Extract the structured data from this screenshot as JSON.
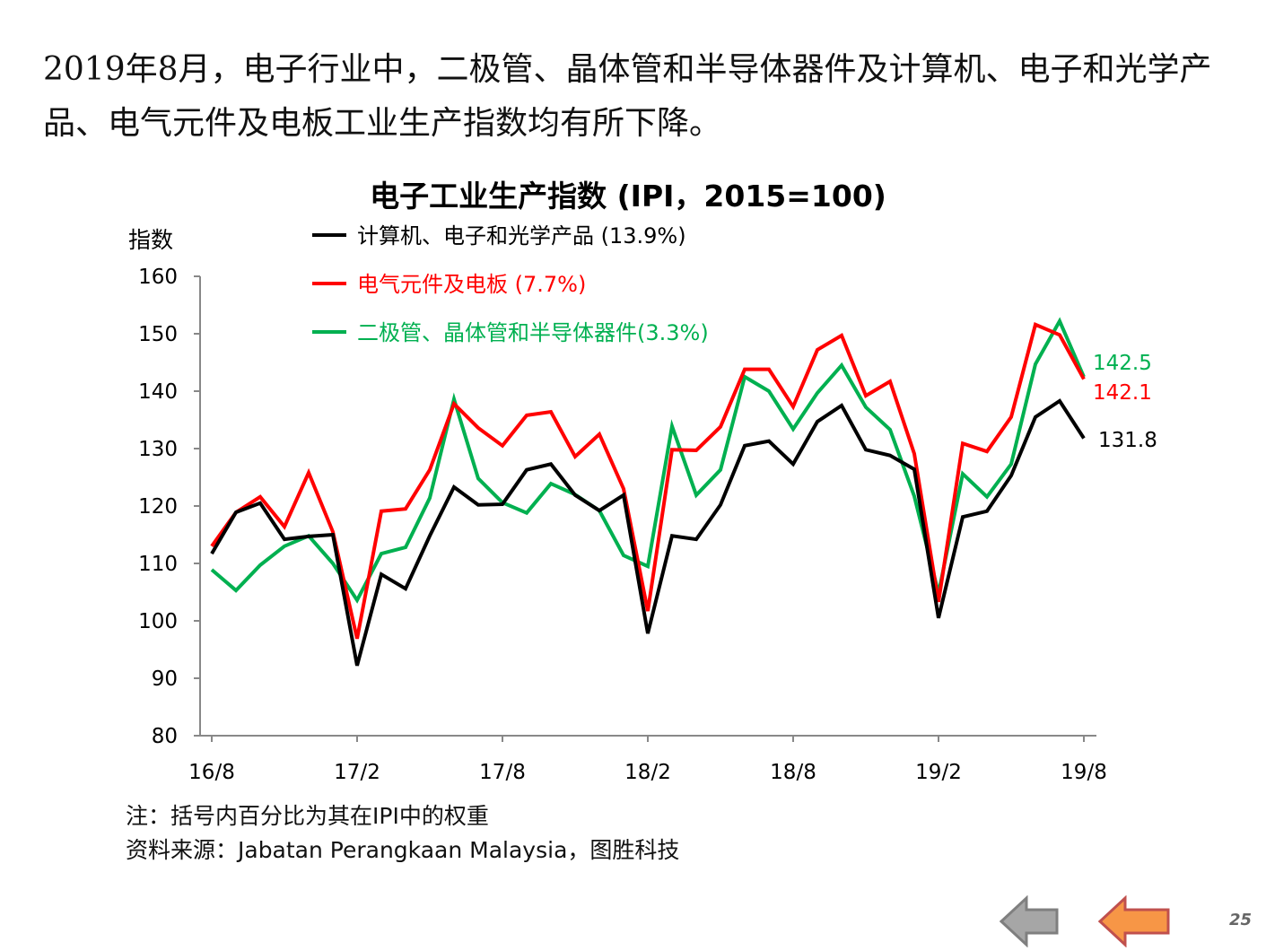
{
  "headline": "2019年8月，电子行业中，二极管、晶体管和半导体器件及计算机、电子和光学产品、电气元件及电板工业生产指数均有所下降。",
  "notes": {
    "note": "注：括号内百分比为其在IPI中的权重",
    "source": "资料来源：Jabatan Perangkaan Malaysia，图胜科技"
  },
  "navigation": {
    "prev_icon": "arrow-left-gray",
    "back_icon": "arrow-left-orange"
  },
  "page_number": "25",
  "chart_data": {
    "type": "line",
    "title": "电子工业生产指数 (IPI，2015=100)",
    "ylabel": "指数",
    "xlabel": "",
    "ylim": [
      80,
      160
    ],
    "yticks": [
      "80",
      "90",
      "100",
      "110",
      "120",
      "130",
      "140",
      "150",
      "160"
    ],
    "xtick_labels": [
      "16/8",
      "17/2",
      "17/8",
      "18/2",
      "18/8",
      "19/2",
      "19/8"
    ],
    "x_start": "2016-08",
    "x_end": "2019-08",
    "grid": false,
    "legend_position": "top-left",
    "series": [
      {
        "name": "计算机、电子和光学产品 (13.9%)",
        "color": "#000000",
        "end_label": "131.8",
        "values": [
          111.7,
          118.9,
          120.5,
          114.2,
          114.7,
          115.0,
          92.2,
          108.1,
          105.6,
          114.8,
          123.3,
          120.2,
          120.3,
          126.3,
          127.3,
          121.9,
          119.2,
          121.9,
          97.8,
          114.8,
          114.2,
          120.2,
          130.5,
          131.3,
          127.3,
          134.7,
          137.5,
          129.8,
          128.8,
          126.4,
          100.5,
          118.1,
          119.1,
          125.3,
          135.5,
          138.3,
          131.8
        ]
      },
      {
        "name": "电气元件及电板 (7.7%)",
        "color": "#ff0000",
        "end_label": "142.1",
        "values": [
          113.0,
          118.9,
          121.6,
          116.4,
          125.8,
          115.5,
          96.9,
          119.1,
          119.5,
          126.3,
          137.8,
          133.6,
          130.5,
          135.8,
          136.4,
          128.6,
          132.5,
          123.0,
          101.7,
          129.8,
          129.7,
          133.8,
          143.8,
          143.8,
          137.3,
          147.2,
          149.7,
          139.2,
          141.7,
          129.1,
          103.3,
          130.9,
          129.5,
          135.5,
          151.6,
          149.8,
          142.1
        ]
      },
      {
        "name": "二极管、晶体管和半导体器件(3.3%)",
        "color": "#00b050",
        "end_label": "142.5",
        "values": [
          108.9,
          105.3,
          109.7,
          113.0,
          114.8,
          110.0,
          103.6,
          111.7,
          112.8,
          121.4,
          138.6,
          124.8,
          120.6,
          118.8,
          123.9,
          122.0,
          119.2,
          111.4,
          109.5,
          133.9,
          121.9,
          126.3,
          142.5,
          140.0,
          133.4,
          139.7,
          144.5,
          137.2,
          133.3,
          121.7,
          104.8,
          125.6,
          121.6,
          127.3,
          144.7,
          152.2,
          142.5
        ]
      }
    ]
  }
}
